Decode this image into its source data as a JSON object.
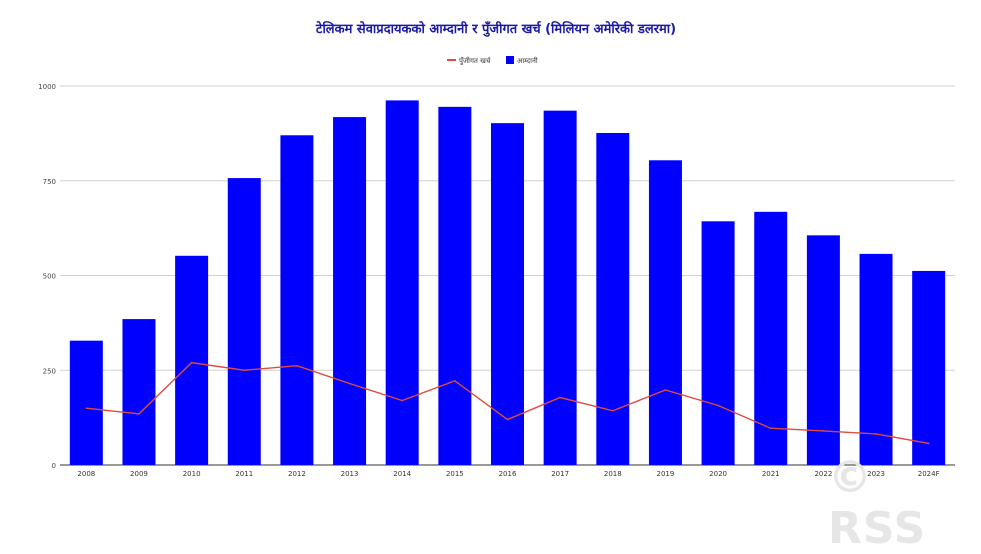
{
  "chart_data": {
    "type": "bar",
    "title": "टेलिकम सेवाप्रदायकको आम्दानी र पुँजीगत खर्च (मिलियन अमेरिकी डलरमा)",
    "xlabel": "",
    "ylabel": "",
    "ylim": [
      0,
      1000
    ],
    "yticks": [
      0,
      250,
      500,
      750,
      1000
    ],
    "grid": true,
    "legend_position": "top-center",
    "categories": [
      "2008",
      "2009",
      "2010",
      "2011",
      "2012",
      "2013",
      "2014",
      "2015",
      "2016",
      "2017",
      "2018",
      "2019",
      "2020",
      "2021",
      "2022",
      "2023",
      "2024F"
    ],
    "series": [
      {
        "name": "पुँजीगत खर्च",
        "type": "line",
        "color": "#e04a3f",
        "values": [
          150,
          135,
          270,
          250,
          262,
          215,
          170,
          222,
          120,
          178,
          143,
          198,
          157,
          97,
          90,
          82,
          57
        ]
      },
      {
        "name": "आम्दानी",
        "type": "bar",
        "color": "#0000ff",
        "values": [
          328,
          385,
          552,
          757,
          870,
          918,
          962,
          945,
          902,
          935,
          876,
          804,
          643,
          668,
          606,
          557,
          512
        ]
      }
    ]
  },
  "watermark": "© RSS"
}
